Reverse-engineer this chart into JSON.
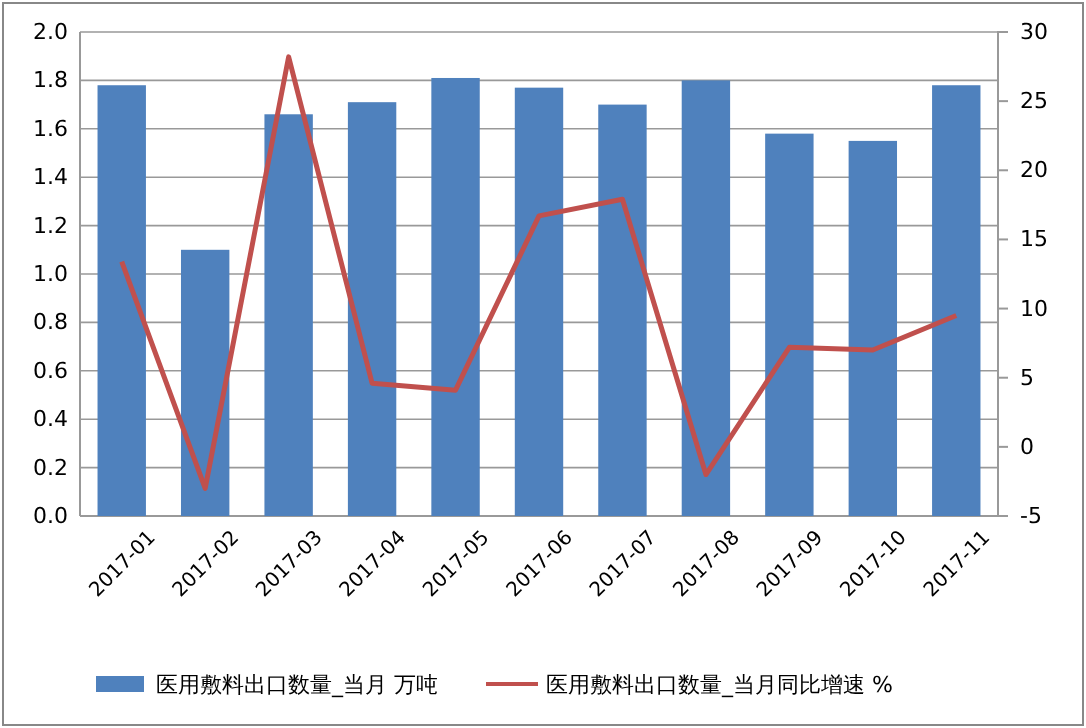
{
  "chart_data": {
    "type": "bar",
    "categories": [
      "2017-01",
      "2017-02",
      "2017-03",
      "2017-04",
      "2017-05",
      "2017-06",
      "2017-07",
      "2017-08",
      "2017-09",
      "2017-10",
      "2017-11"
    ],
    "series": [
      {
        "name": "医用敷料出口数量_当月 万吨",
        "color": "#4f81bd",
        "values": [
          1.78,
          1.1,
          1.66,
          1.71,
          1.81,
          1.77,
          1.7,
          1.8,
          1.58,
          1.55,
          1.78
        ]
      },
      {
        "name": "医用敷料出口数量_当月同比增速 %",
        "type": "line",
        "axis": "y2",
        "color": "#c0504d",
        "values": [
          13.4,
          -3.0,
          28.2,
          4.6,
          4.1,
          16.7,
          17.9,
          -2.0,
          7.2,
          7.0,
          9.5
        ]
      }
    ],
    "ylim": [
      0,
      2
    ],
    "yticks": [
      {
        "value": 0,
        "label": "0.0"
      },
      {
        "value": 0.2,
        "label": "0.2"
      },
      {
        "value": 0.4,
        "label": "0.4"
      },
      {
        "value": 0.6,
        "label": "0.6"
      },
      {
        "value": 0.8,
        "label": "0.8"
      },
      {
        "value": 1,
        "label": "1.0"
      },
      {
        "value": 1.2,
        "label": "1.2"
      },
      {
        "value": 1.4,
        "label": "1.4"
      },
      {
        "value": 1.6,
        "label": "1.6"
      },
      {
        "value": 1.8,
        "label": "1.8"
      },
      {
        "value": 2,
        "label": "2.0"
      }
    ],
    "y2lim": [
      -5,
      30
    ],
    "y2ticks": [
      -5,
      0,
      5,
      10,
      15,
      20,
      25,
      30
    ],
    "grid": "y",
    "legend": "bottom",
    "marker": "none",
    "line_style": "solid"
  }
}
